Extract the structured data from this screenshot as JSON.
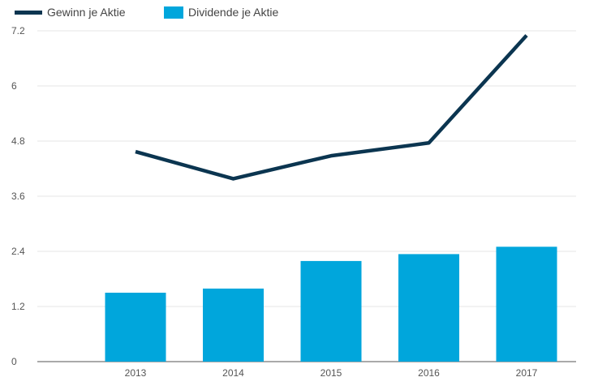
{
  "chart_data": {
    "type": "bar",
    "categories": [
      "2013",
      "2014",
      "2015",
      "2016",
      "2017"
    ],
    "series": [
      {
        "name": "Gewinn je Aktie",
        "type": "line",
        "color": "#0b3550",
        "values": [
          4.57,
          3.98,
          4.48,
          4.76,
          7.1
        ]
      },
      {
        "name": "Dividende je Aktie",
        "type": "bar",
        "color": "#00a6dc",
        "values": [
          1.5,
          1.59,
          2.19,
          2.34,
          2.5
        ]
      }
    ],
    "y_ticks": [
      "0",
      "1.2",
      "2.4",
      "3.6",
      "4.8",
      "6",
      "7.2"
    ],
    "ylim": [
      0,
      7.2
    ],
    "grid": true,
    "legend_position": "top-left"
  }
}
